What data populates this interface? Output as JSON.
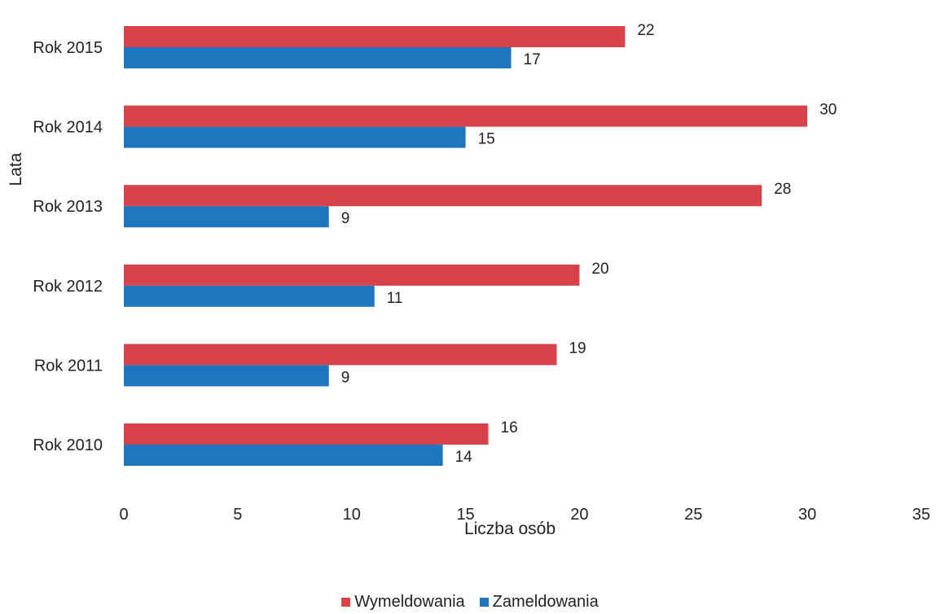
{
  "chart_data": {
    "type": "bar",
    "orientation": "horizontal",
    "categories": [
      "Rok 2015",
      "Rok 2014",
      "Rok 2013",
      "Rok 2012",
      "Rok 2011",
      "Rok 2010"
    ],
    "series": [
      {
        "name": "Wymeldowania",
        "color": "#d8424b",
        "values": [
          22,
          30,
          28,
          20,
          19,
          16
        ]
      },
      {
        "name": "Zameldowania",
        "color": "#1f76bd",
        "values": [
          17,
          15,
          9,
          11,
          9,
          14
        ]
      }
    ],
    "xlabel": "Liczba osób",
    "ylabel": "Lata",
    "xlim": [
      0,
      35
    ],
    "xticks": [
      0,
      5,
      10,
      15,
      20,
      25,
      30,
      35
    ],
    "grid": false,
    "data_labels": true,
    "legend_position": "bottom"
  }
}
